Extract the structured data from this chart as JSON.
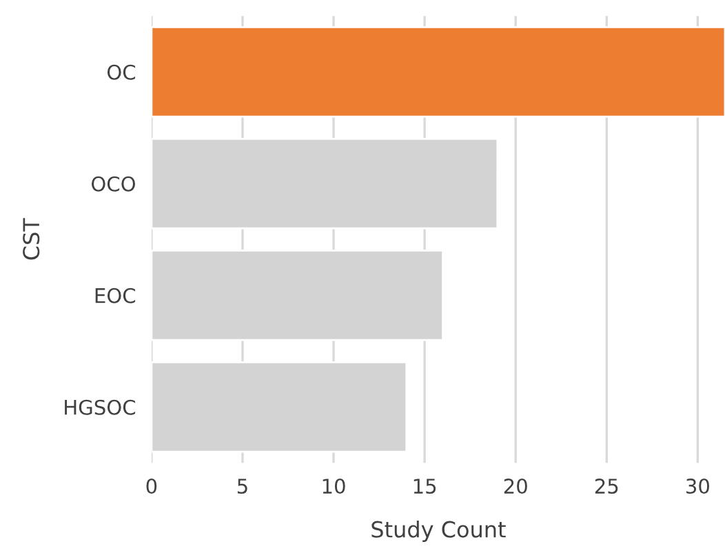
{
  "chart_data": {
    "type": "bar",
    "orientation": "horizontal",
    "categories": [
      "OC",
      "OCO",
      "EOC",
      "HGSOC"
    ],
    "values": [
      31.5,
      19,
      16,
      14
    ],
    "colors": [
      "#ed7d31",
      "#d3d3d3",
      "#d3d3d3",
      "#d3d3d3"
    ],
    "xlabel": "Study Count",
    "ylabel": "CST",
    "xlim": [
      0,
      31.5
    ],
    "xticks": [
      0,
      5,
      10,
      15,
      20,
      25,
      30
    ],
    "grid": "x",
    "legend": false
  }
}
